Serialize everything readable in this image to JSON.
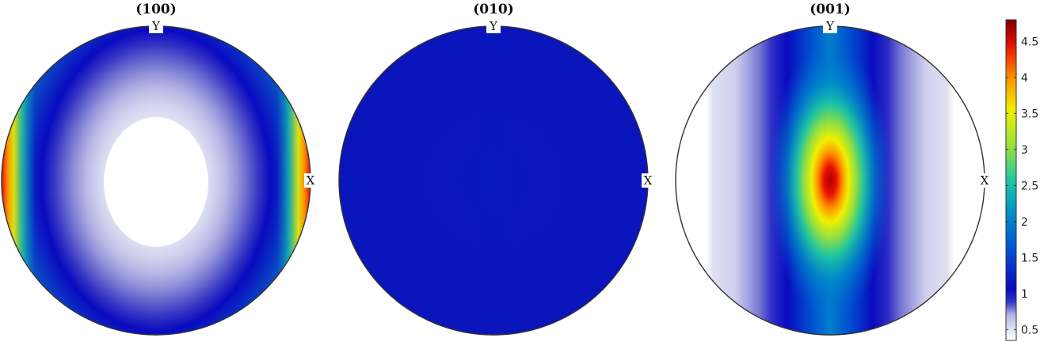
{
  "chart_data": {
    "type": "heatmap",
    "subtype": "pole-figure",
    "panels": [
      {
        "title": "(100)",
        "x_label": "X",
        "y_label": "Y",
        "pattern": "ring",
        "min_value": 0.4,
        "max_value": 4.8
      },
      {
        "title": "(010)",
        "x_label": "X",
        "y_label": "Y",
        "pattern": "uniform",
        "min_value": 0.9,
        "max_value": 1.1
      },
      {
        "title": "(001)",
        "x_label": "X",
        "y_label": "Y",
        "pattern": "center-peak",
        "min_value": 0.4,
        "max_value": 4.7
      }
    ],
    "colorbar": {
      "range": [
        0.35,
        4.8
      ],
      "ticks": [
        "0.5",
        "1",
        "1.5",
        "2",
        "2.5",
        "3",
        "3.5",
        "4",
        "4.5"
      ],
      "tick_values": [
        0.5,
        1,
        1.5,
        2,
        2.5,
        3,
        3.5,
        4,
        4.5
      ],
      "placement": "right",
      "colormap": [
        "#ffffff",
        "#e6e6f5",
        "#b3b3e6",
        "#3333c8",
        "#0a0ac0",
        "#0050d0",
        "#0090c8",
        "#20c8a0",
        "#90e040",
        "#f0f000",
        "#ff9000",
        "#e81000",
        "#800000"
      ]
    }
  }
}
